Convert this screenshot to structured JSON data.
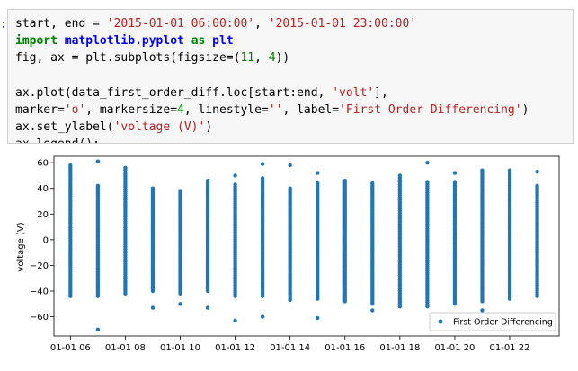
{
  "cell": {
    "prompt": ":",
    "lines": [
      [
        {
          "t": "start, end = ",
          "c": ""
        },
        {
          "t": "'2015-01-01 06:00:00'",
          "c": "str"
        },
        {
          "t": ", ",
          "c": ""
        },
        {
          "t": "'2015-01-01 23:00:00'",
          "c": "str"
        }
      ],
      [
        {
          "t": "import",
          "c": "kw"
        },
        {
          "t": " ",
          "c": ""
        },
        {
          "t": "matplotlib.pyplot",
          "c": "mod"
        },
        {
          "t": " ",
          "c": ""
        },
        {
          "t": "as",
          "c": "kw"
        },
        {
          "t": " ",
          "c": ""
        },
        {
          "t": "plt",
          "c": "mod"
        }
      ],
      [
        {
          "t": "fig, ax = plt.subplots(figsize=(",
          "c": ""
        },
        {
          "t": "11",
          "c": "num"
        },
        {
          "t": ", ",
          "c": ""
        },
        {
          "t": "4",
          "c": "num"
        },
        {
          "t": "))",
          "c": ""
        }
      ],
      [
        {
          "t": "",
          "c": ""
        }
      ],
      [
        {
          "t": "ax.plot(data_first_order_diff.loc[start:end, ",
          "c": ""
        },
        {
          "t": "'volt'",
          "c": "str"
        },
        {
          "t": "],",
          "c": ""
        }
      ],
      [
        {
          "t": "marker=",
          "c": ""
        },
        {
          "t": "'o'",
          "c": "str"
        },
        {
          "t": ", markersize=",
          "c": ""
        },
        {
          "t": "4",
          "c": "num"
        },
        {
          "t": ", linestyle=",
          "c": ""
        },
        {
          "t": "''",
          "c": "str"
        },
        {
          "t": ", label=",
          "c": ""
        },
        {
          "t": "'First Order Differencing'",
          "c": "str"
        },
        {
          "t": ")",
          "c": ""
        }
      ],
      [
        {
          "t": "ax.set_ylabel(",
          "c": ""
        },
        {
          "t": "'voltage (V)'",
          "c": "str"
        },
        {
          "t": ")",
          "c": ""
        }
      ],
      [
        {
          "t": "ax.legend();",
          "c": ""
        }
      ]
    ]
  },
  "chart_data": {
    "type": "scatter",
    "ylabel": "voltage (V)",
    "xlabel": "",
    "ylim": [
      -75,
      65
    ],
    "xlim": [
      5.4,
      23.8
    ],
    "yticks": [
      60,
      40,
      20,
      0,
      -20,
      -40,
      -60
    ],
    "ytick_labels": [
      "60",
      "40",
      "20",
      "0",
      "−20",
      "−40",
      "−60"
    ],
    "xticks": [
      6,
      8,
      10,
      12,
      14,
      16,
      18,
      20,
      22
    ],
    "xtick_labels": [
      "01-01 06",
      "01-01 08",
      "01-01 10",
      "01-01 12",
      "01-01 14",
      "01-01 16",
      "01-01 18",
      "01-01 20",
      "01-01 22"
    ],
    "legend": {
      "label": "First Order Differencing",
      "placement": "lower-right"
    },
    "color": "#1f77b4",
    "columns": [
      {
        "hour": 6,
        "min": -44,
        "max": 58,
        "outliers": []
      },
      {
        "hour": 7,
        "min": -44,
        "max": 42,
        "outliers": [
          61,
          -70
        ]
      },
      {
        "hour": 8,
        "min": -42,
        "max": 56,
        "outliers": []
      },
      {
        "hour": 9,
        "min": -40,
        "max": 40,
        "outliers": [
          -53
        ]
      },
      {
        "hour": 10,
        "min": -42,
        "max": 38,
        "outliers": [
          -50
        ]
      },
      {
        "hour": 11,
        "min": -40,
        "max": 46,
        "outliers": [
          -53
        ]
      },
      {
        "hour": 12,
        "min": -44,
        "max": 43,
        "outliers": [
          50,
          -63
        ]
      },
      {
        "hour": 13,
        "min": -44,
        "max": 48,
        "outliers": [
          59,
          -60
        ]
      },
      {
        "hour": 14,
        "min": -47,
        "max": 40,
        "outliers": [
          58
        ]
      },
      {
        "hour": 15,
        "min": -46,
        "max": 44,
        "outliers": [
          52,
          -61
        ]
      },
      {
        "hour": 16,
        "min": -48,
        "max": 46,
        "outliers": []
      },
      {
        "hour": 17,
        "min": -50,
        "max": 44,
        "outliers": [
          -55
        ]
      },
      {
        "hour": 18,
        "min": -52,
        "max": 50,
        "outliers": []
      },
      {
        "hour": 19,
        "min": -52,
        "max": 45,
        "outliers": [
          60
        ]
      },
      {
        "hour": 20,
        "min": -50,
        "max": 45,
        "outliers": [
          52
        ]
      },
      {
        "hour": 21,
        "min": -48,
        "max": 54,
        "outliers": [
          -55
        ]
      },
      {
        "hour": 22,
        "min": -46,
        "max": 54,
        "outliers": []
      },
      {
        "hour": 23,
        "min": -44,
        "max": 42,
        "outliers": [
          53
        ]
      }
    ]
  }
}
